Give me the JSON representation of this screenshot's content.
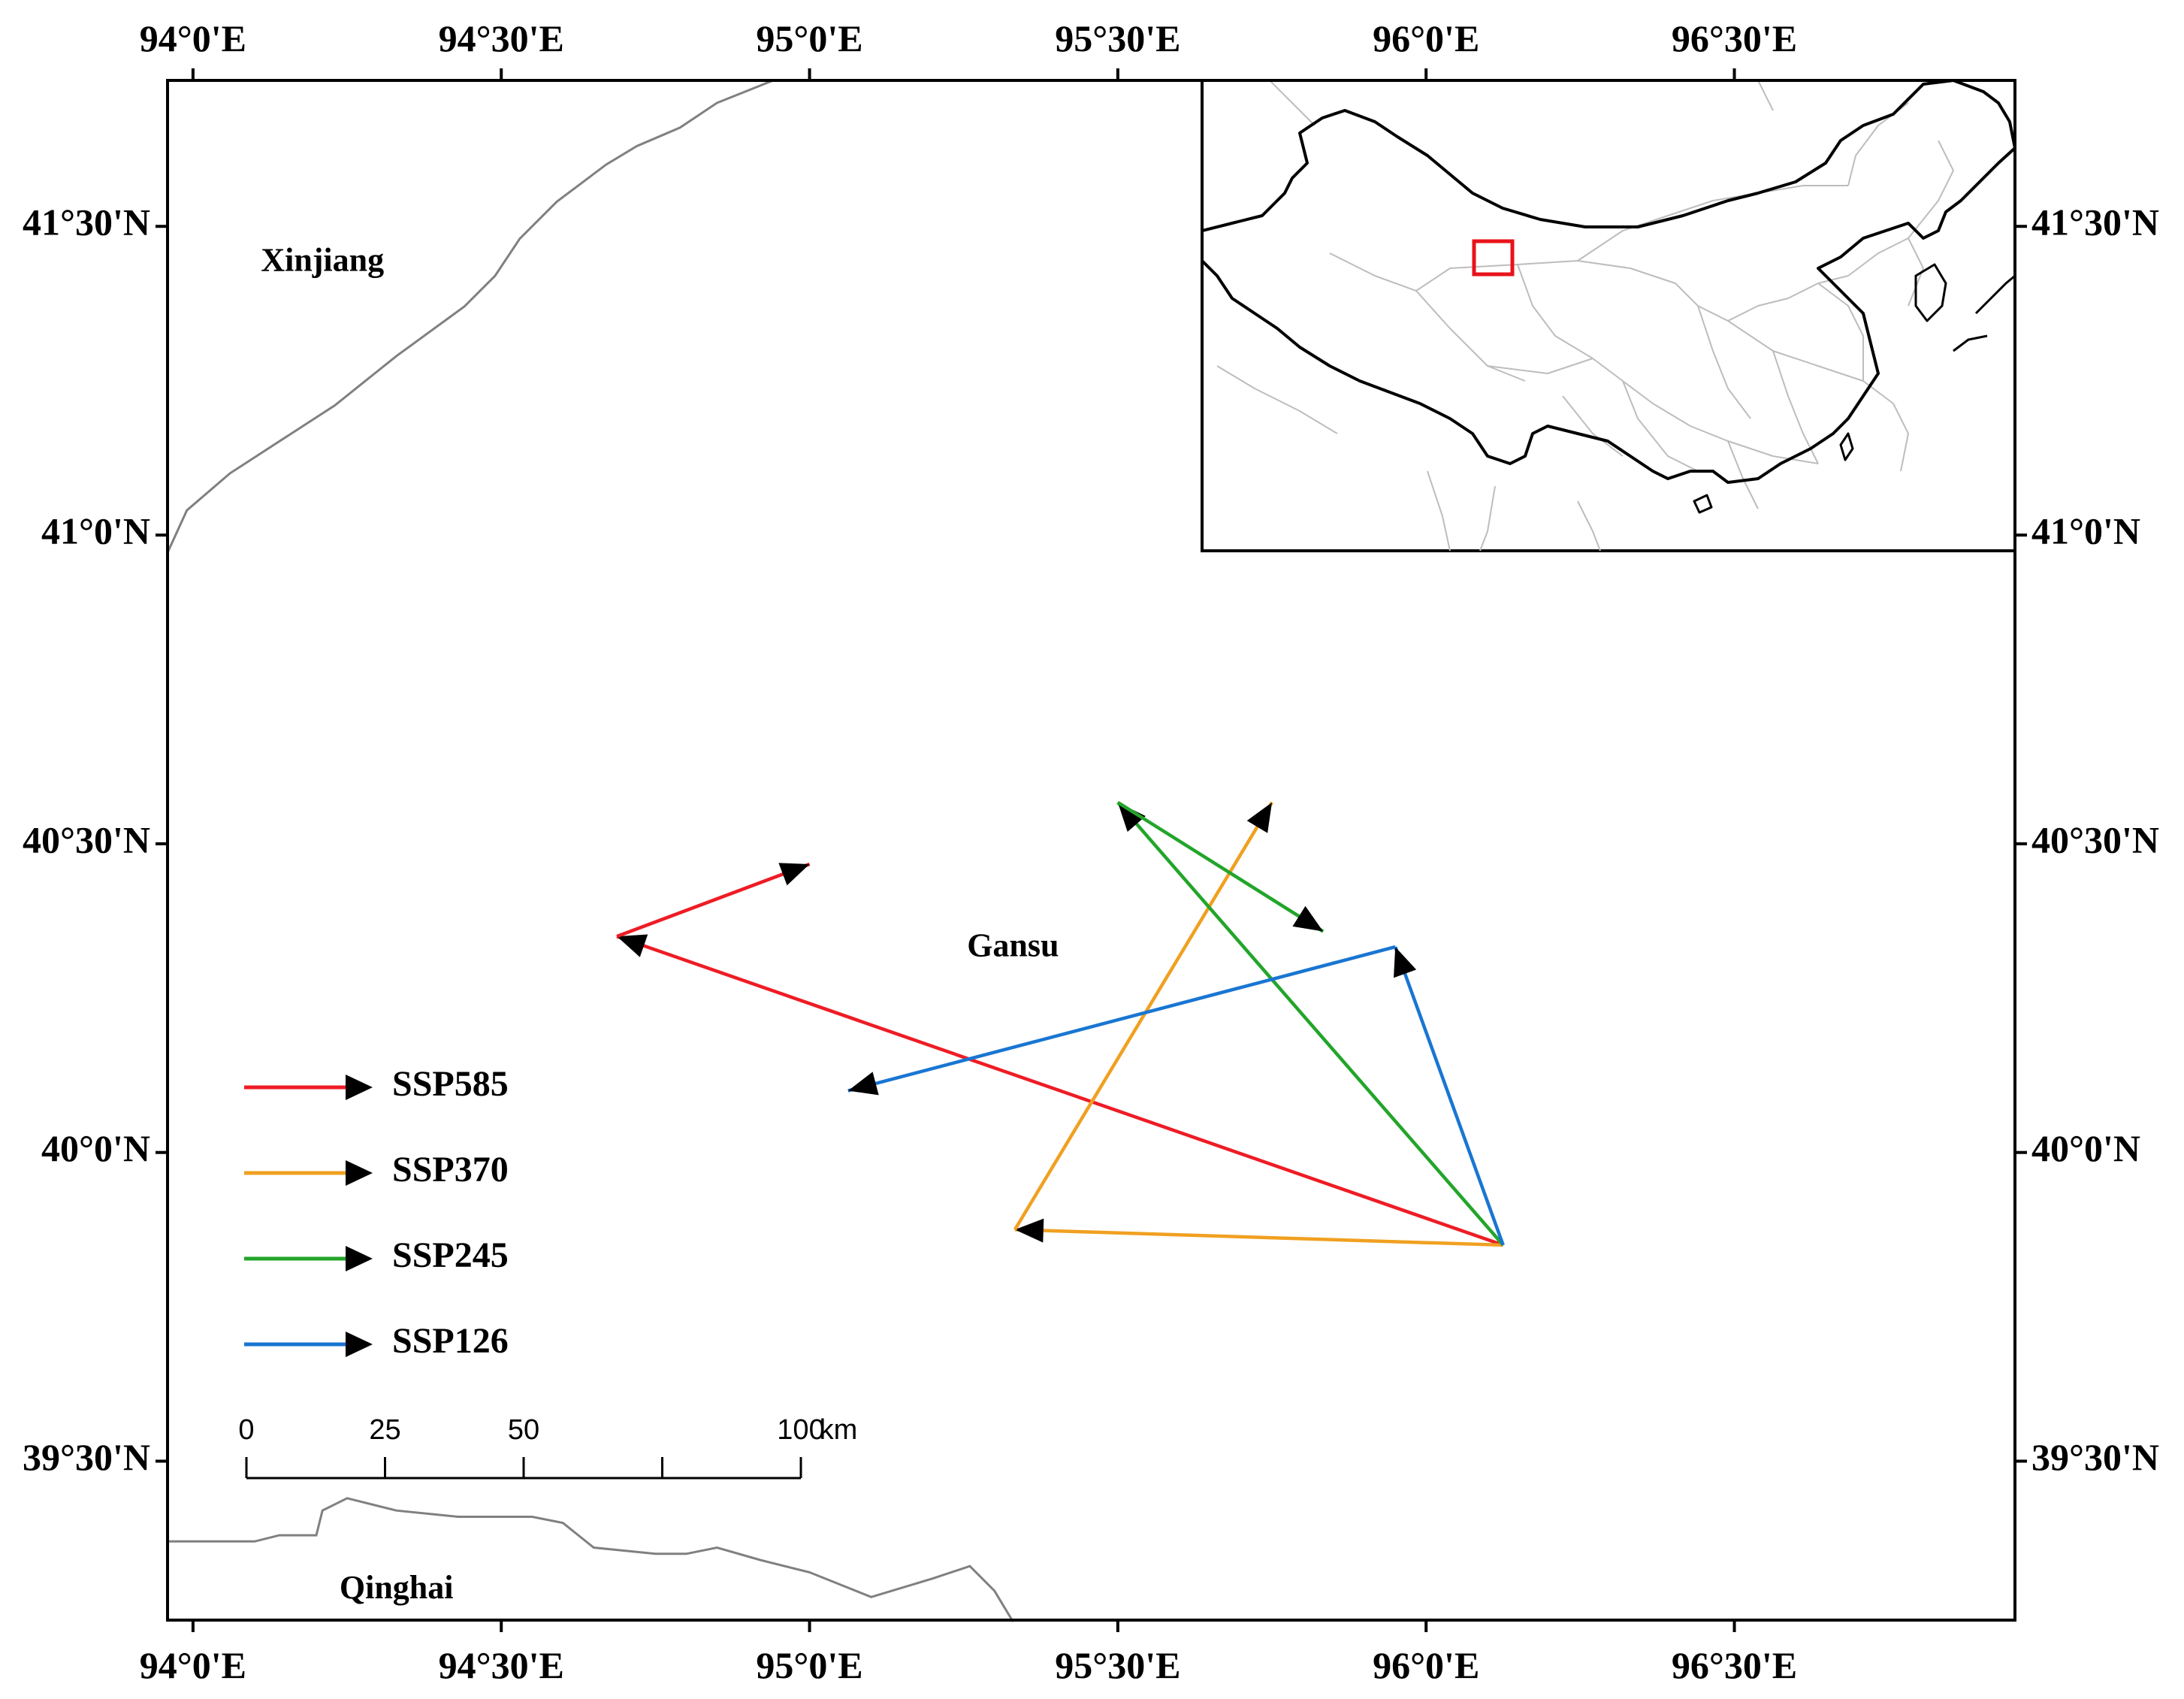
{
  "map": {
    "extent": {
      "lon_min": 93.9587,
      "lon_max": 96.9551,
      "lat_min": 39.2426,
      "lat_max": 41.7364
    },
    "lon_ticks": [
      {
        "value": 94.0,
        "label": "94°0'E"
      },
      {
        "value": 94.5,
        "label": "94°30'E"
      },
      {
        "value": 95.0,
        "label": "95°0'E"
      },
      {
        "value": 95.5,
        "label": "95°30'E"
      },
      {
        "value": 96.0,
        "label": "96°0'E"
      },
      {
        "value": 96.5,
        "label": "96°30'E"
      }
    ],
    "lat_ticks": [
      {
        "value": 41.5,
        "label": "41°30'N"
      },
      {
        "value": 41.0,
        "label": "41°0'N"
      },
      {
        "value": 40.5,
        "label": "40°30'N"
      },
      {
        "value": 40.0,
        "label": "40°0'N"
      },
      {
        "value": 39.5,
        "label": "39°30'N"
      }
    ],
    "regions": [
      {
        "name": "Xinjiang",
        "lon": 94.21,
        "lat": 41.44
      },
      {
        "name": "Gansu",
        "lon": 95.33,
        "lat": 40.33
      },
      {
        "name": "Qinghai",
        "lon": 94.33,
        "lat": 39.29
      }
    ],
    "borders": [
      {
        "id": "xinjiang-gansu",
        "coords": [
          [
            93.958,
            40.97
          ],
          [
            93.99,
            41.04
          ],
          [
            94.06,
            41.1
          ],
          [
            94.23,
            41.21
          ],
          [
            94.33,
            41.29
          ],
          [
            94.44,
            41.37
          ],
          [
            94.49,
            41.42
          ],
          [
            94.53,
            41.48
          ],
          [
            94.59,
            41.54
          ],
          [
            94.67,
            41.6
          ],
          [
            94.72,
            41.63
          ],
          [
            94.79,
            41.66
          ],
          [
            94.85,
            41.7
          ],
          [
            94.9,
            41.72
          ],
          [
            94.94,
            41.736
          ]
        ]
      },
      {
        "id": "gansu-qinghai",
        "coords": [
          [
            93.958,
            39.37
          ],
          [
            94.1,
            39.37
          ],
          [
            94.14,
            39.38
          ],
          [
            94.2,
            39.38
          ],
          [
            94.21,
            39.42
          ],
          [
            94.25,
            39.44
          ],
          [
            94.33,
            39.42
          ],
          [
            94.43,
            39.41
          ],
          [
            94.55,
            39.41
          ],
          [
            94.6,
            39.4
          ],
          [
            94.65,
            39.36
          ],
          [
            94.75,
            39.35
          ],
          [
            94.8,
            39.35
          ],
          [
            94.85,
            39.36
          ],
          [
            94.92,
            39.34
          ],
          [
            95.0,
            39.32
          ],
          [
            95.1,
            39.28
          ],
          [
            95.2,
            39.31
          ],
          [
            95.26,
            39.33
          ],
          [
            95.3,
            39.29
          ],
          [
            95.33,
            39.24
          ]
        ]
      }
    ]
  },
  "tracks": [
    {
      "scenario": "SSP585",
      "color": "#ee1c25",
      "points": [
        [
          96.125,
          39.85
        ],
        [
          94.6875,
          40.35
        ],
        [
          95.0,
          40.467
        ]
      ]
    },
    {
      "scenario": "SSP370",
      "color": "#f0a020",
      "points": [
        [
          96.125,
          39.85
        ],
        [
          95.333,
          39.875
        ],
        [
          95.75,
          40.567
        ]
      ]
    },
    {
      "scenario": "SSP245",
      "color": "#22a52a",
      "points": [
        [
          96.125,
          39.85
        ],
        [
          95.5,
          40.567
        ],
        [
          95.833,
          40.358
        ]
      ]
    },
    {
      "scenario": "SSP126",
      "color": "#1976d2",
      "points": [
        [
          96.125,
          39.85
        ],
        [
          95.95,
          40.333
        ],
        [
          95.0625,
          40.1
        ]
      ]
    }
  ],
  "legend": [
    {
      "label": "SSP585",
      "color": "#ee1c25"
    },
    {
      "label": "SSP370",
      "color": "#f0a020"
    },
    {
      "label": "SSP245",
      "color": "#22a52a"
    },
    {
      "label": "SSP126",
      "color": "#1976d2"
    }
  ],
  "scale_bar": {
    "ticks": [
      {
        "value": 0,
        "label": "0"
      },
      {
        "value": 25,
        "label": "25"
      },
      {
        "value": 50,
        "label": "50"
      },
      {
        "value": 75,
        "label": ""
      },
      {
        "value": 100,
        "label": "100"
      }
    ],
    "unit": "km"
  },
  "inset": {
    "description_icon": "china-locator-map",
    "focus_color": "#e8131a"
  }
}
